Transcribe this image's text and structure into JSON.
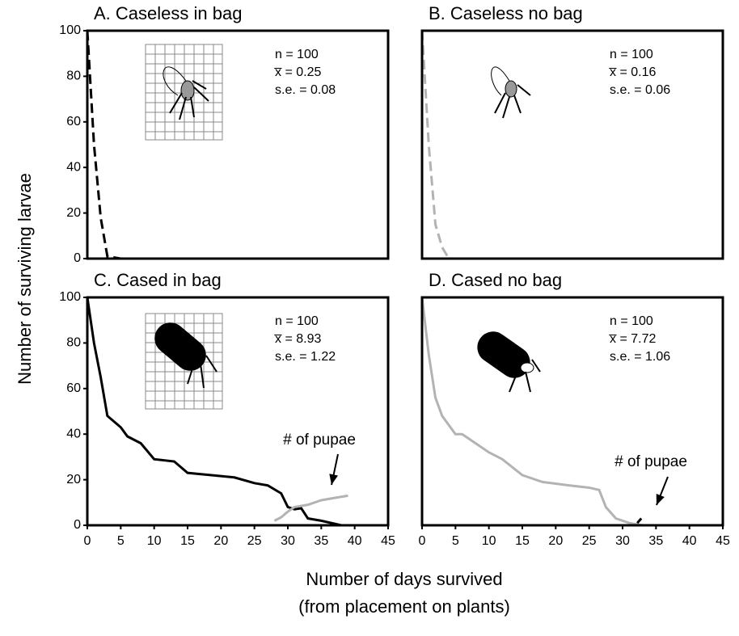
{
  "ylabel": "Number of  surviving larvae",
  "xlabel": [
    "Number of days survived",
    "(from placement on plants)"
  ],
  "chart_data": [
    {
      "type": "line",
      "title": "A. Caseless in bag",
      "annotations": [
        "n = 100",
        "x̅ = 0.25",
        "s.e. = 0.08"
      ],
      "xlim": [
        0,
        45
      ],
      "ylim": [
        0,
        100
      ],
      "yticks": [
        0,
        20,
        40,
        60,
        80,
        100
      ],
      "series": [
        {
          "color": "#000000",
          "dash": true,
          "x": [
            0,
            1,
            2,
            3,
            4,
            5
          ],
          "values": [
            100,
            50,
            18,
            1,
            0.5,
            0
          ]
        }
      ]
    },
    {
      "type": "line",
      "title": "B. Caseless no bag",
      "annotations": [
        "n = 100",
        "x̅ = 0.16",
        "s.e. = 0.06"
      ],
      "xlim": [
        0,
        45
      ],
      "ylim": [
        0,
        100
      ],
      "series": [
        {
          "color": "#b3b3b3",
          "dash": true,
          "x": [
            0,
            1,
            2,
            3,
            4
          ],
          "values": [
            100,
            50,
            15,
            5,
            0
          ]
        }
      ]
    },
    {
      "type": "line",
      "title": "C. Cased in bag",
      "annotations": [
        "n = 100",
        "x̅ = 8.93",
        "s.e. = 1.22"
      ],
      "xlim": [
        0,
        45
      ],
      "ylim": [
        0,
        100
      ],
      "yticks": [
        0,
        20,
        40,
        60,
        80,
        100
      ],
      "xticks": [
        0,
        5,
        10,
        15,
        20,
        25,
        30,
        35,
        40,
        45
      ],
      "series": [
        {
          "color": "#000000",
          "dash": false,
          "x": [
            0,
            1,
            2,
            3,
            5,
            6,
            8,
            10,
            13,
            15,
            22,
            25,
            27,
            29,
            30,
            31,
            32,
            33,
            35,
            38,
            40
          ],
          "values": [
            100,
            80,
            65,
            48,
            43,
            39,
            36,
            29,
            28,
            23,
            21,
            18.5,
            17.5,
            14,
            8,
            7,
            7.5,
            3,
            2,
            0,
            0
          ]
        },
        {
          "name": "# of pupae",
          "color": "#b3b3b3",
          "dash": false,
          "x": [
            28,
            29,
            30,
            31,
            33,
            35,
            37,
            39
          ],
          "values": [
            2,
            3.5,
            6,
            8,
            9,
            11,
            12,
            13
          ]
        }
      ]
    },
    {
      "type": "line",
      "title": "D. Cased no bag",
      "annotations": [
        "n = 100",
        "x̅ = 7.72",
        "s.e. = 1.06"
      ],
      "xlim": [
        0,
        45
      ],
      "ylim": [
        0,
        100
      ],
      "xticks": [
        0,
        5,
        10,
        15,
        20,
        25,
        30,
        35,
        40,
        45
      ],
      "series": [
        {
          "color": "#b3b3b3",
          "dash": false,
          "x": [
            0,
            1,
            2,
            3,
            5,
            6,
            7,
            8,
            10,
            12,
            15,
            18,
            22,
            25,
            26.5,
            27.5,
            29,
            31,
            32,
            33
          ],
          "values": [
            100,
            75,
            56,
            48,
            40,
            40,
            38,
            36,
            32,
            29,
            22,
            19,
            17.5,
            16.5,
            15.5,
            8,
            3,
            1,
            0.5,
            0
          ]
        },
        {
          "name": "# of pupae",
          "color": "#000000",
          "dash": false,
          "x": [
            32.2,
            32.8
          ],
          "values": [
            1,
            3
          ]
        }
      ]
    }
  ]
}
